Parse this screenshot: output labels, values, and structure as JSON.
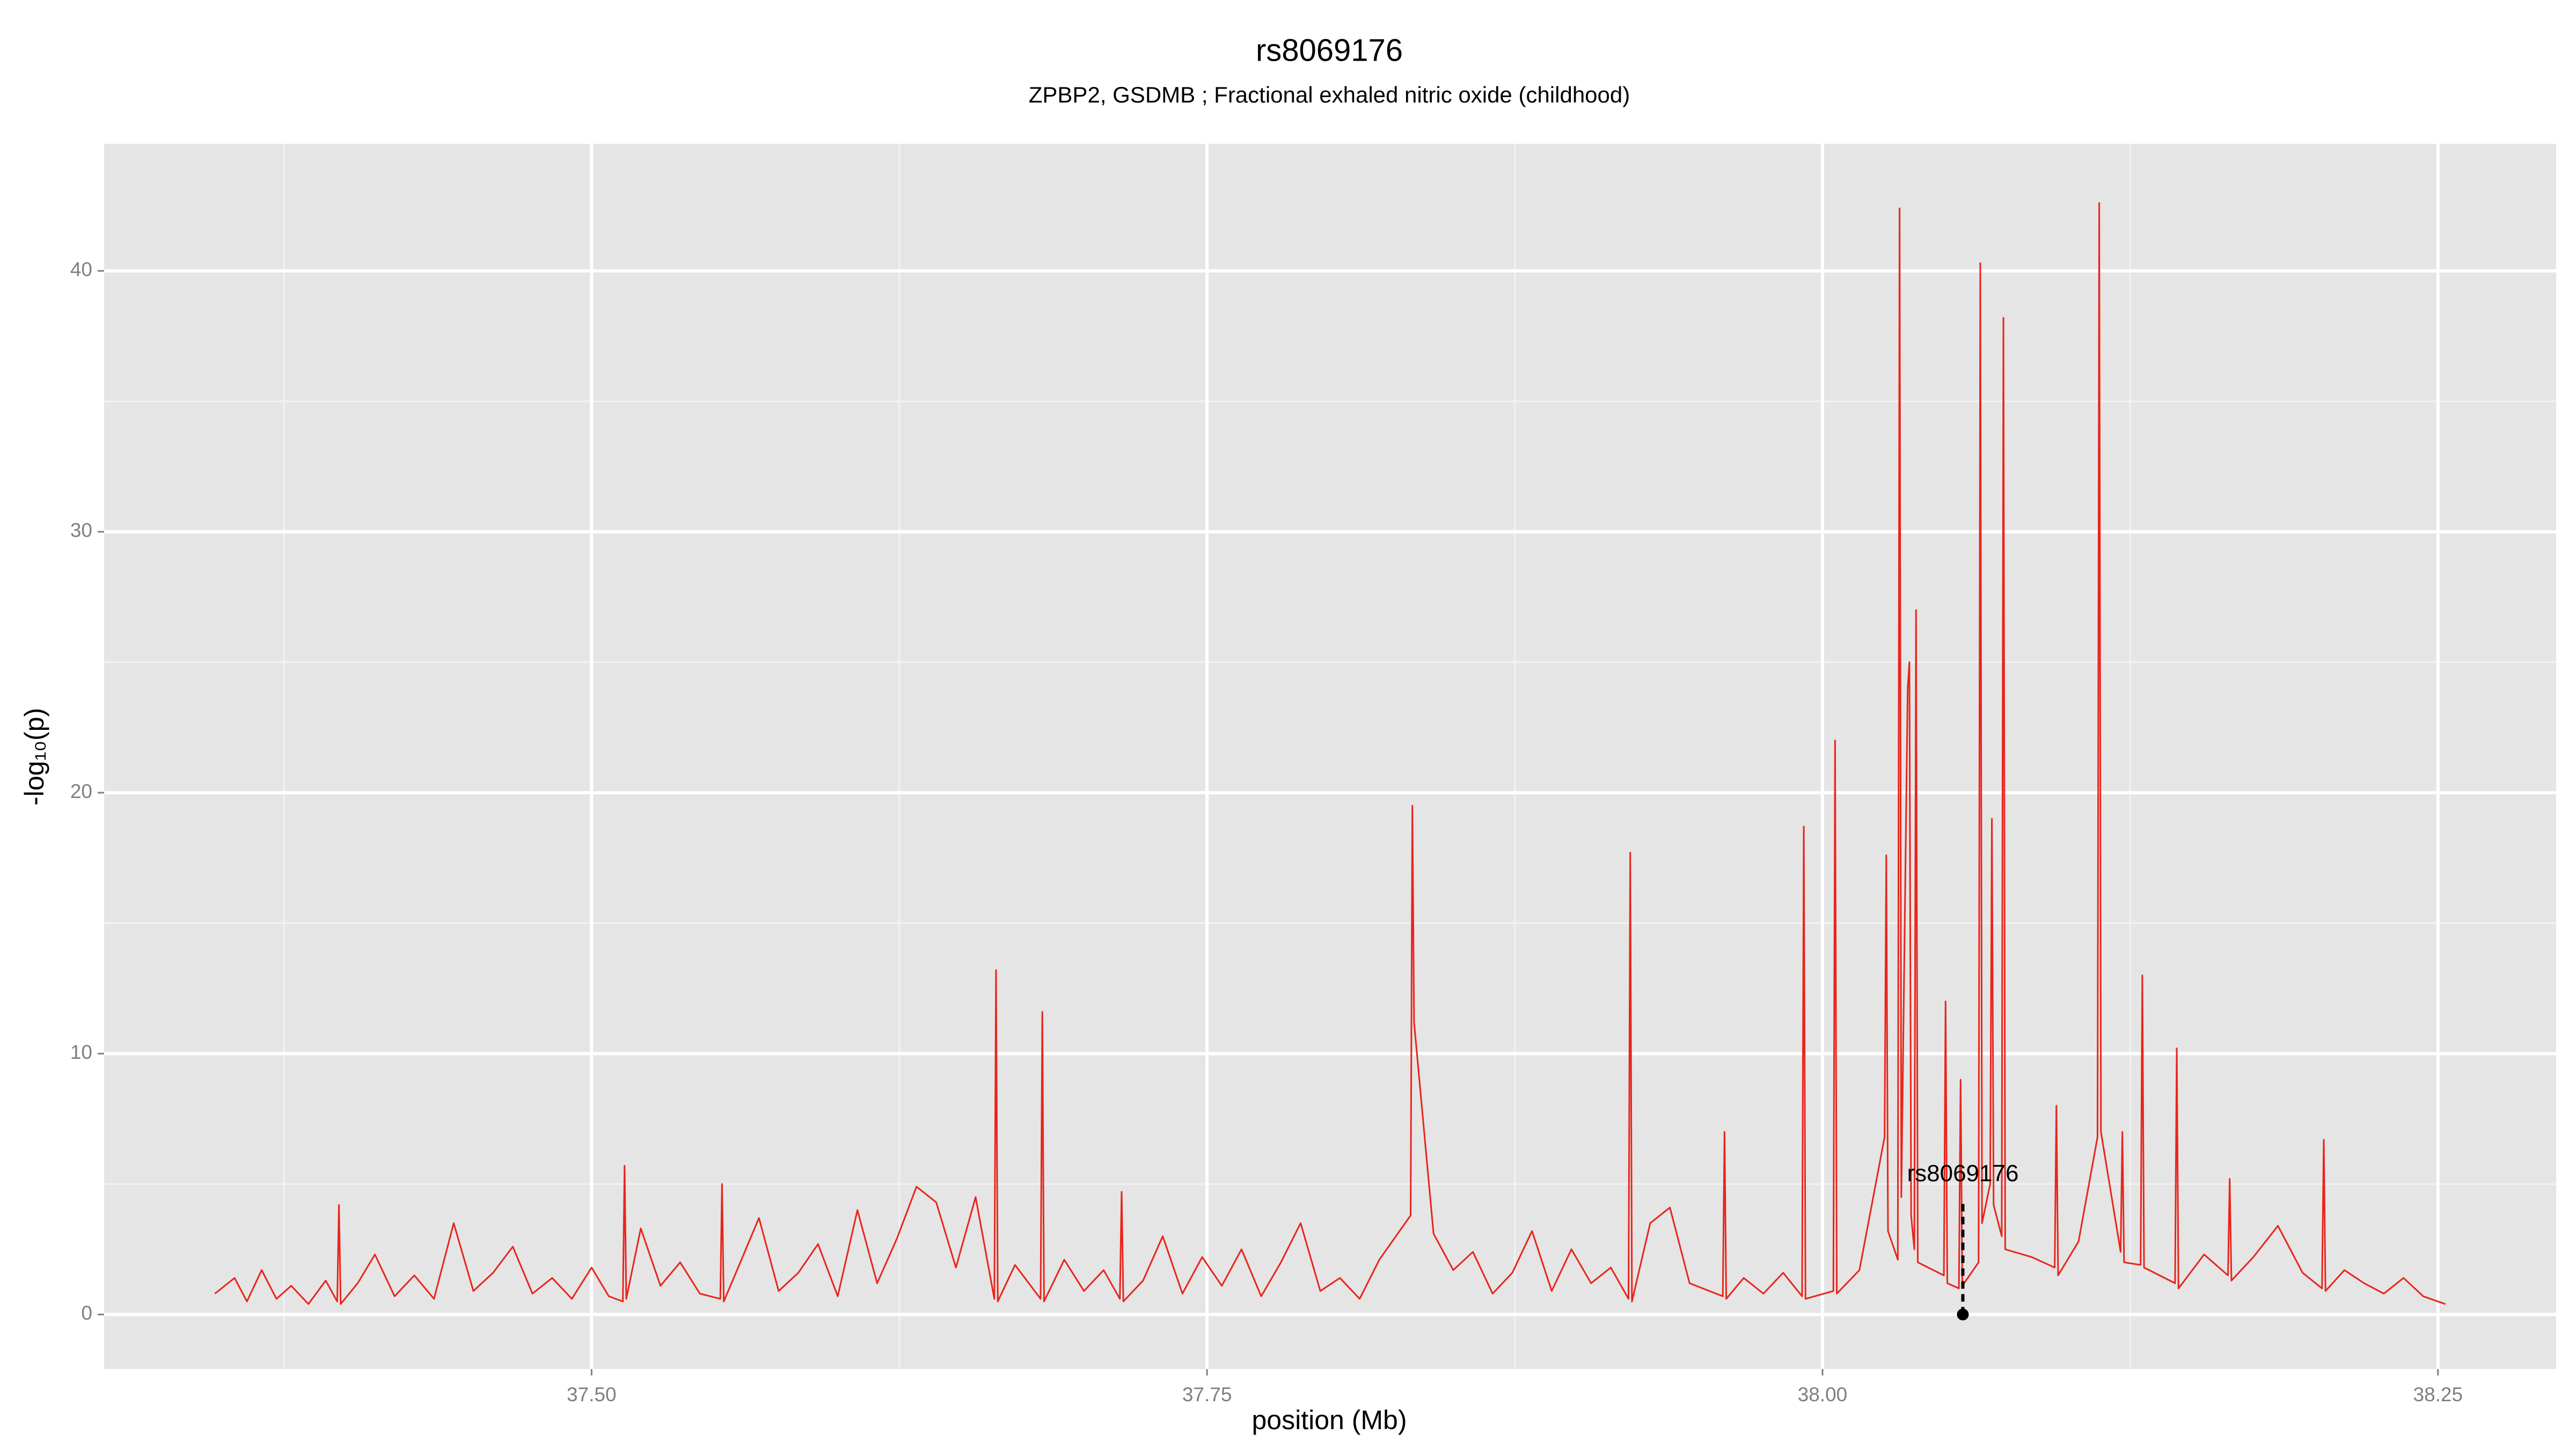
{
  "chart_data": {
    "type": "line",
    "title": "rs8069176",
    "subtitle": "ZPBP2, GSDMB ; Fractional exhaled nitric oxide (childhood)",
    "x_label": "position (Mb)",
    "y_label": "-log₁₀(p)",
    "xlim": [
      37.302,
      38.298
    ],
    "ylim": [
      -2.09,
      44.87
    ],
    "xticks": [
      {
        "value": 37.5,
        "label": "37.50"
      },
      37.75,
      {
        "value": 38.0,
        "label": "38.00"
      },
      38.25
    ],
    "yticks": [
      0,
      10,
      20,
      30,
      40
    ],
    "grid": true,
    "color": "#e8251c",
    "annotation": {
      "text": "rs8069176",
      "x": 38.057,
      "y": 0
    },
    "x": [
      37.347,
      37.355,
      37.36,
      37.366,
      37.372,
      37.378,
      37.385,
      37.392,
      37.3967,
      37.3974,
      37.3981,
      37.405,
      37.412,
      37.42,
      37.428,
      37.436,
      37.444,
      37.452,
      37.46,
      37.468,
      37.476,
      37.484,
      37.492,
      37.5,
      37.507,
      37.5127,
      37.5134,
      37.5141,
      37.52,
      37.528,
      37.536,
      37.544,
      37.5523,
      37.553,
      37.5537,
      37.56,
      37.568,
      37.576,
      37.584,
      37.592,
      37.6,
      37.608,
      37.616,
      37.624,
      37.632,
      37.64,
      37.648,
      37.656,
      37.6636,
      37.6643,
      37.665,
      37.672,
      37.6824,
      37.6831,
      37.6838,
      37.692,
      37.7,
      37.708,
      37.7146,
      37.7153,
      37.716,
      37.724,
      37.732,
      37.74,
      37.748,
      37.756,
      37.764,
      37.772,
      37.78,
      37.788,
      37.796,
      37.804,
      37.812,
      37.82,
      37.8327,
      37.8334,
      37.8341,
      37.842,
      37.85,
      37.858,
      37.866,
      37.874,
      37.882,
      37.89,
      37.898,
      37.906,
      37.914,
      37.9212,
      37.9219,
      37.9226,
      37.93,
      37.938,
      37.946,
      37.9595,
      37.9602,
      37.9609,
      37.968,
      37.976,
      37.984,
      37.9917,
      37.9924,
      37.9931,
      38.0044,
      38.0051,
      38.0058,
      38.015,
      38.0252,
      38.0259,
      38.0266,
      38.0306,
      38.0313,
      38.032,
      38.0346,
      38.0353,
      38.036,
      38.0373,
      38.038,
      38.0387,
      38.0493,
      38.05,
      38.0507,
      38.0554,
      38.0561,
      38.0568,
      38.0634,
      38.0641,
      38.0648,
      38.0681,
      38.0688,
      38.0695,
      38.0728,
      38.0735,
      38.0742,
      38.085,
      38.0943,
      38.095,
      38.0957,
      38.104,
      38.1117,
      38.1124,
      38.1131,
      38.1211,
      38.1218,
      38.1225,
      38.1292,
      38.1299,
      38.1306,
      38.1432,
      38.1439,
      38.1446,
      38.155,
      38.1647,
      38.1654,
      38.1661,
      38.175,
      38.185,
      38.195,
      38.2029,
      38.2036,
      38.2043,
      38.212,
      38.22,
      38.228,
      38.236,
      38.244,
      38.253
    ],
    "values": [
      0.8,
      1.4,
      0.5,
      1.7,
      0.6,
      1.1,
      0.4,
      1.3,
      0.5,
      4.2,
      0.4,
      1.2,
      2.3,
      0.7,
      1.5,
      0.6,
      3.5,
      0.9,
      1.6,
      2.6,
      0.8,
      1.4,
      0.6,
      1.8,
      0.7,
      0.5,
      5.7,
      0.6,
      3.3,
      1.1,
      2.0,
      0.8,
      0.6,
      5.0,
      0.5,
      1.9,
      3.7,
      0.9,
      1.6,
      2.7,
      0.7,
      4.0,
      1.2,
      2.9,
      4.9,
      4.3,
      1.8,
      4.5,
      0.6,
      13.2,
      0.5,
      1.9,
      0.6,
      11.6,
      0.5,
      2.1,
      0.9,
      1.7,
      0.6,
      4.7,
      0.5,
      1.3,
      3.0,
      0.8,
      2.2,
      1.1,
      2.5,
      0.7,
      2.0,
      3.5,
      0.9,
      1.4,
      0.6,
      2.1,
      3.8,
      19.5,
      11.2,
      3.1,
      1.7,
      2.4,
      0.8,
      1.6,
      3.2,
      0.9,
      2.5,
      1.2,
      1.8,
      0.6,
      17.7,
      0.5,
      3.5,
      4.1,
      1.2,
      0.7,
      7.0,
      0.6,
      1.4,
      0.8,
      1.6,
      0.7,
      18.7,
      0.6,
      0.9,
      22.0,
      0.8,
      1.7,
      6.8,
      17.6,
      3.2,
      2.1,
      42.4,
      4.5,
      24.0,
      25.0,
      3.8,
      2.5,
      27.0,
      2.0,
      1.5,
      12.0,
      1.2,
      1.0,
      9.0,
      1.1,
      2.0,
      40.3,
      3.5,
      5.0,
      19.0,
      4.2,
      3.0,
      38.2,
      2.5,
      2.2,
      1.8,
      8.0,
      1.5,
      2.8,
      6.8,
      42.6,
      7.0,
      2.4,
      7.0,
      2.0,
      1.9,
      13.0,
      1.8,
      1.2,
      10.2,
      1.0,
      2.3,
      1.5,
      5.2,
      1.3,
      2.2,
      3.4,
      1.6,
      1.0,
      6.7,
      0.9,
      1.7,
      1.2,
      0.8,
      1.4,
      0.7,
      0.4
    ]
  }
}
